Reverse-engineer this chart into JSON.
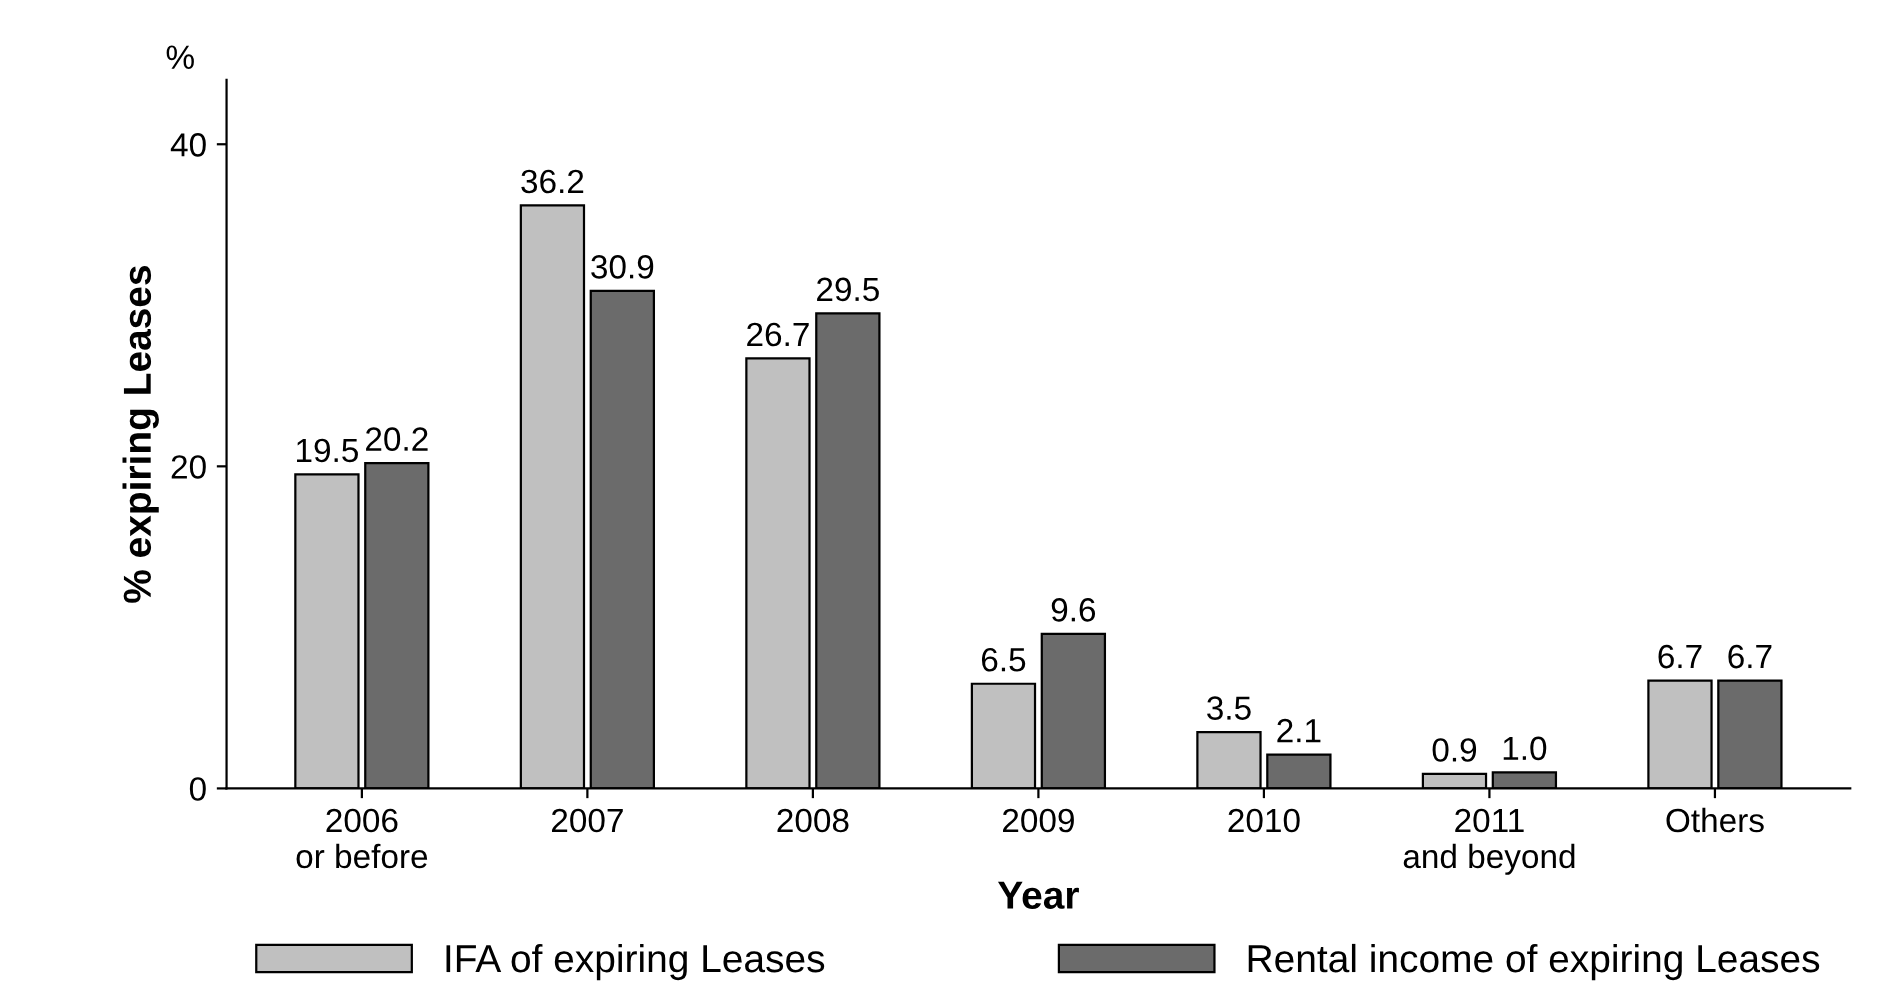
{
  "chart_data": {
    "type": "bar",
    "xlabel": "Year",
    "ylabel": "% expiring Leases",
    "annotations": [
      "%"
    ],
    "categories": [
      "2006\nor before",
      "2007",
      "2008",
      "2009",
      "2010",
      "2011\nand beyond",
      "Others"
    ],
    "series": [
      {
        "name": "IFA of expiring Leases",
        "color": "#c0c0c0",
        "values": [
          19.5,
          36.2,
          26.7,
          6.5,
          3.5,
          0.9,
          6.7
        ],
        "value_labels": [
          "19.5",
          "36.2",
          "26.7",
          "6.5",
          "3.5",
          "0.9",
          "6.7"
        ]
      },
      {
        "name": "Rental income of expiring Leases",
        "color": "#6b6b6b",
        "values": [
          20.2,
          30.9,
          29.5,
          9.6,
          2.1,
          1.0,
          6.7
        ],
        "value_labels": [
          "20.2",
          "30.9",
          "29.5",
          "9.6",
          "2.1",
          "1.0",
          "6.7"
        ]
      }
    ],
    "ylim": [
      0,
      44
    ],
    "yticks": [
      0,
      20,
      40
    ],
    "grid": false,
    "legend": "bottom"
  }
}
